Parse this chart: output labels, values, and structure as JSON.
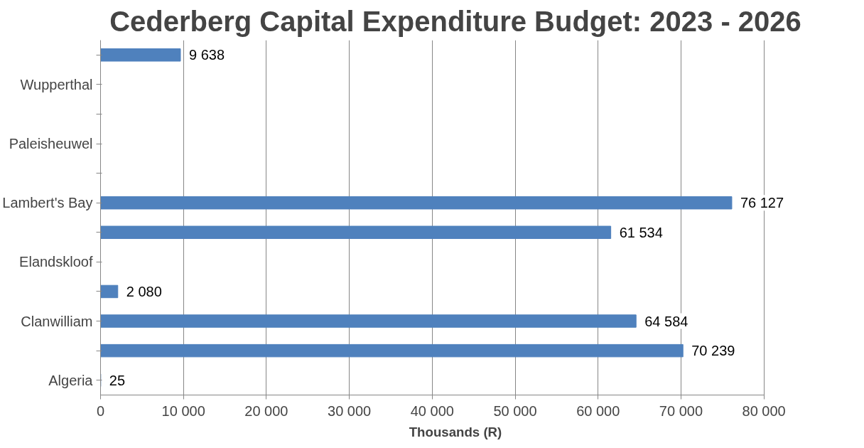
{
  "chart_data": {
    "type": "bar",
    "orientation": "horizontal",
    "title": "Cederberg Capital Expenditure Budget: 2023 - 2026",
    "xlabel": "Thousands (R)",
    "categories": [
      null,
      "Wupperthal",
      null,
      "Paleisheuwel",
      null,
      "Lambert's Bay",
      null,
      "Elandskloof",
      null,
      "Clanwilliam",
      null,
      "Algeria"
    ],
    "values": [
      9638,
      null,
      null,
      null,
      null,
      76127,
      61534,
      null,
      2080,
      64584,
      70239,
      25
    ],
    "value_labels": [
      "9 638",
      null,
      null,
      null,
      null,
      "76 127",
      "61 534",
      null,
      "2 080",
      "64 584",
      "70 239",
      "25"
    ],
    "color": "#4f81bd",
    "xlim": [
      0,
      80000
    ],
    "xticks": [
      0,
      {
        "value": 10000,
        "label": "10 000"
      },
      {
        "value": 20000,
        "label": "20 000"
      },
      {
        "value": 30000,
        "label": "30 000"
      },
      {
        "value": 40000,
        "label": "40 000"
      },
      {
        "value": 50000,
        "label": "50 000"
      },
      {
        "value": 60000,
        "label": "60 000"
      },
      {
        "value": 70000,
        "label": "70 000"
      },
      {
        "value": 80000,
        "label": "80 000"
      }
    ],
    "grid": "x"
  }
}
